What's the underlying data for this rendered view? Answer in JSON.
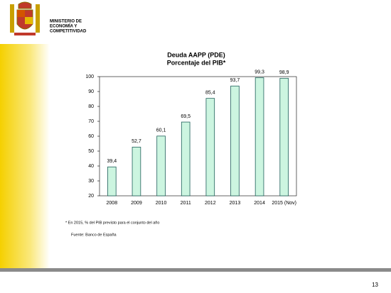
{
  "header": {
    "lines": [
      "MINISTERIO DE",
      "ECONOMÍA Y",
      "COMPETITIVIDAD"
    ]
  },
  "chart_data": {
    "type": "bar",
    "title": "Deuda AAPP (PDE)",
    "subtitle": "Porcentaje del PIB*",
    "categories": [
      "2008",
      "2009",
      "2010",
      "2011",
      "2012",
      "2013",
      "2014",
      "2015 (Nov)"
    ],
    "values": [
      39.4,
      52.7,
      60.1,
      69.5,
      85.4,
      93.7,
      99.3,
      98.9
    ],
    "value_labels": [
      "39,4",
      "52,7",
      "60,1",
      "69,5",
      "85,4",
      "93,7",
      "99,3",
      "98,9"
    ],
    "color": "#ccf5e0",
    "edge_color": "#1f5f5a",
    "ylim": [
      20,
      100
    ],
    "yticks": [
      20,
      30,
      40,
      50,
      60,
      70,
      80,
      90,
      100
    ],
    "grid": false
  },
  "footnote": "* En 2015, % del PIB previsto para el conjunto del año",
  "source": "Fuente:  Banco de España",
  "page_number": "13"
}
